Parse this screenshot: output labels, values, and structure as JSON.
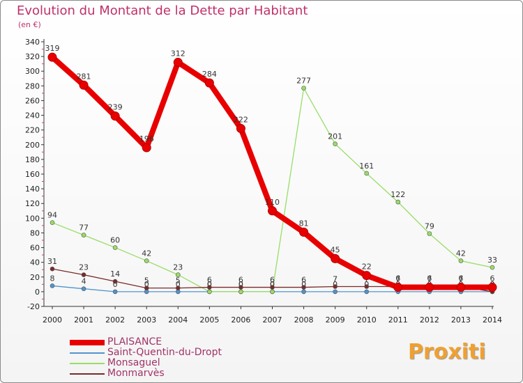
{
  "header": {
    "title": "Evolution du Montant de la Dette par Habitant",
    "subtitle": "(en €)"
  },
  "logo": {
    "text": "Proxiti"
  },
  "chart_data": {
    "type": "line",
    "title": "Evolution du Montant de la Dette par Habitant",
    "subtitle": "(en €)",
    "x": [
      2000,
      2001,
      2002,
      2003,
      2004,
      2005,
      2006,
      2007,
      2008,
      2009,
      2010,
      2011,
      2012,
      2013,
      2014
    ],
    "ylim": [
      -20,
      340
    ],
    "yticks": [
      -20,
      0,
      20,
      40,
      60,
      80,
      100,
      120,
      140,
      160,
      180,
      200,
      220,
      240,
      260,
      280,
      300,
      320,
      340
    ],
    "grid": false,
    "legend_position": "bottom-left",
    "series": [
      {
        "name": "PLAISANCE",
        "color": "#e80000",
        "values": [
          319,
          281,
          239,
          196,
          312,
          284,
          222,
          110,
          81,
          45,
          22,
          6,
          6,
          6,
          6
        ]
      },
      {
        "name": "Saint-Quentin-du-Dropt",
        "color": "#4f94cd",
        "values": [
          8,
          4,
          0,
          0,
          0,
          0,
          0,
          0,
          0,
          0,
          0,
          0,
          0,
          0,
          0
        ]
      },
      {
        "name": "Monsaguel",
        "color": "#99dd66",
        "values": [
          94,
          77,
          60,
          42,
          23,
          0,
          0,
          0,
          277,
          201,
          161,
          122,
          79,
          42,
          33
        ]
      },
      {
        "name": "Monmarvès",
        "color": "#7a2a2a",
        "values": [
          31,
          23,
          14,
          5,
          5,
          6,
          6,
          6,
          6,
          7,
          7,
          7,
          7,
          7,
          0
        ]
      }
    ]
  }
}
